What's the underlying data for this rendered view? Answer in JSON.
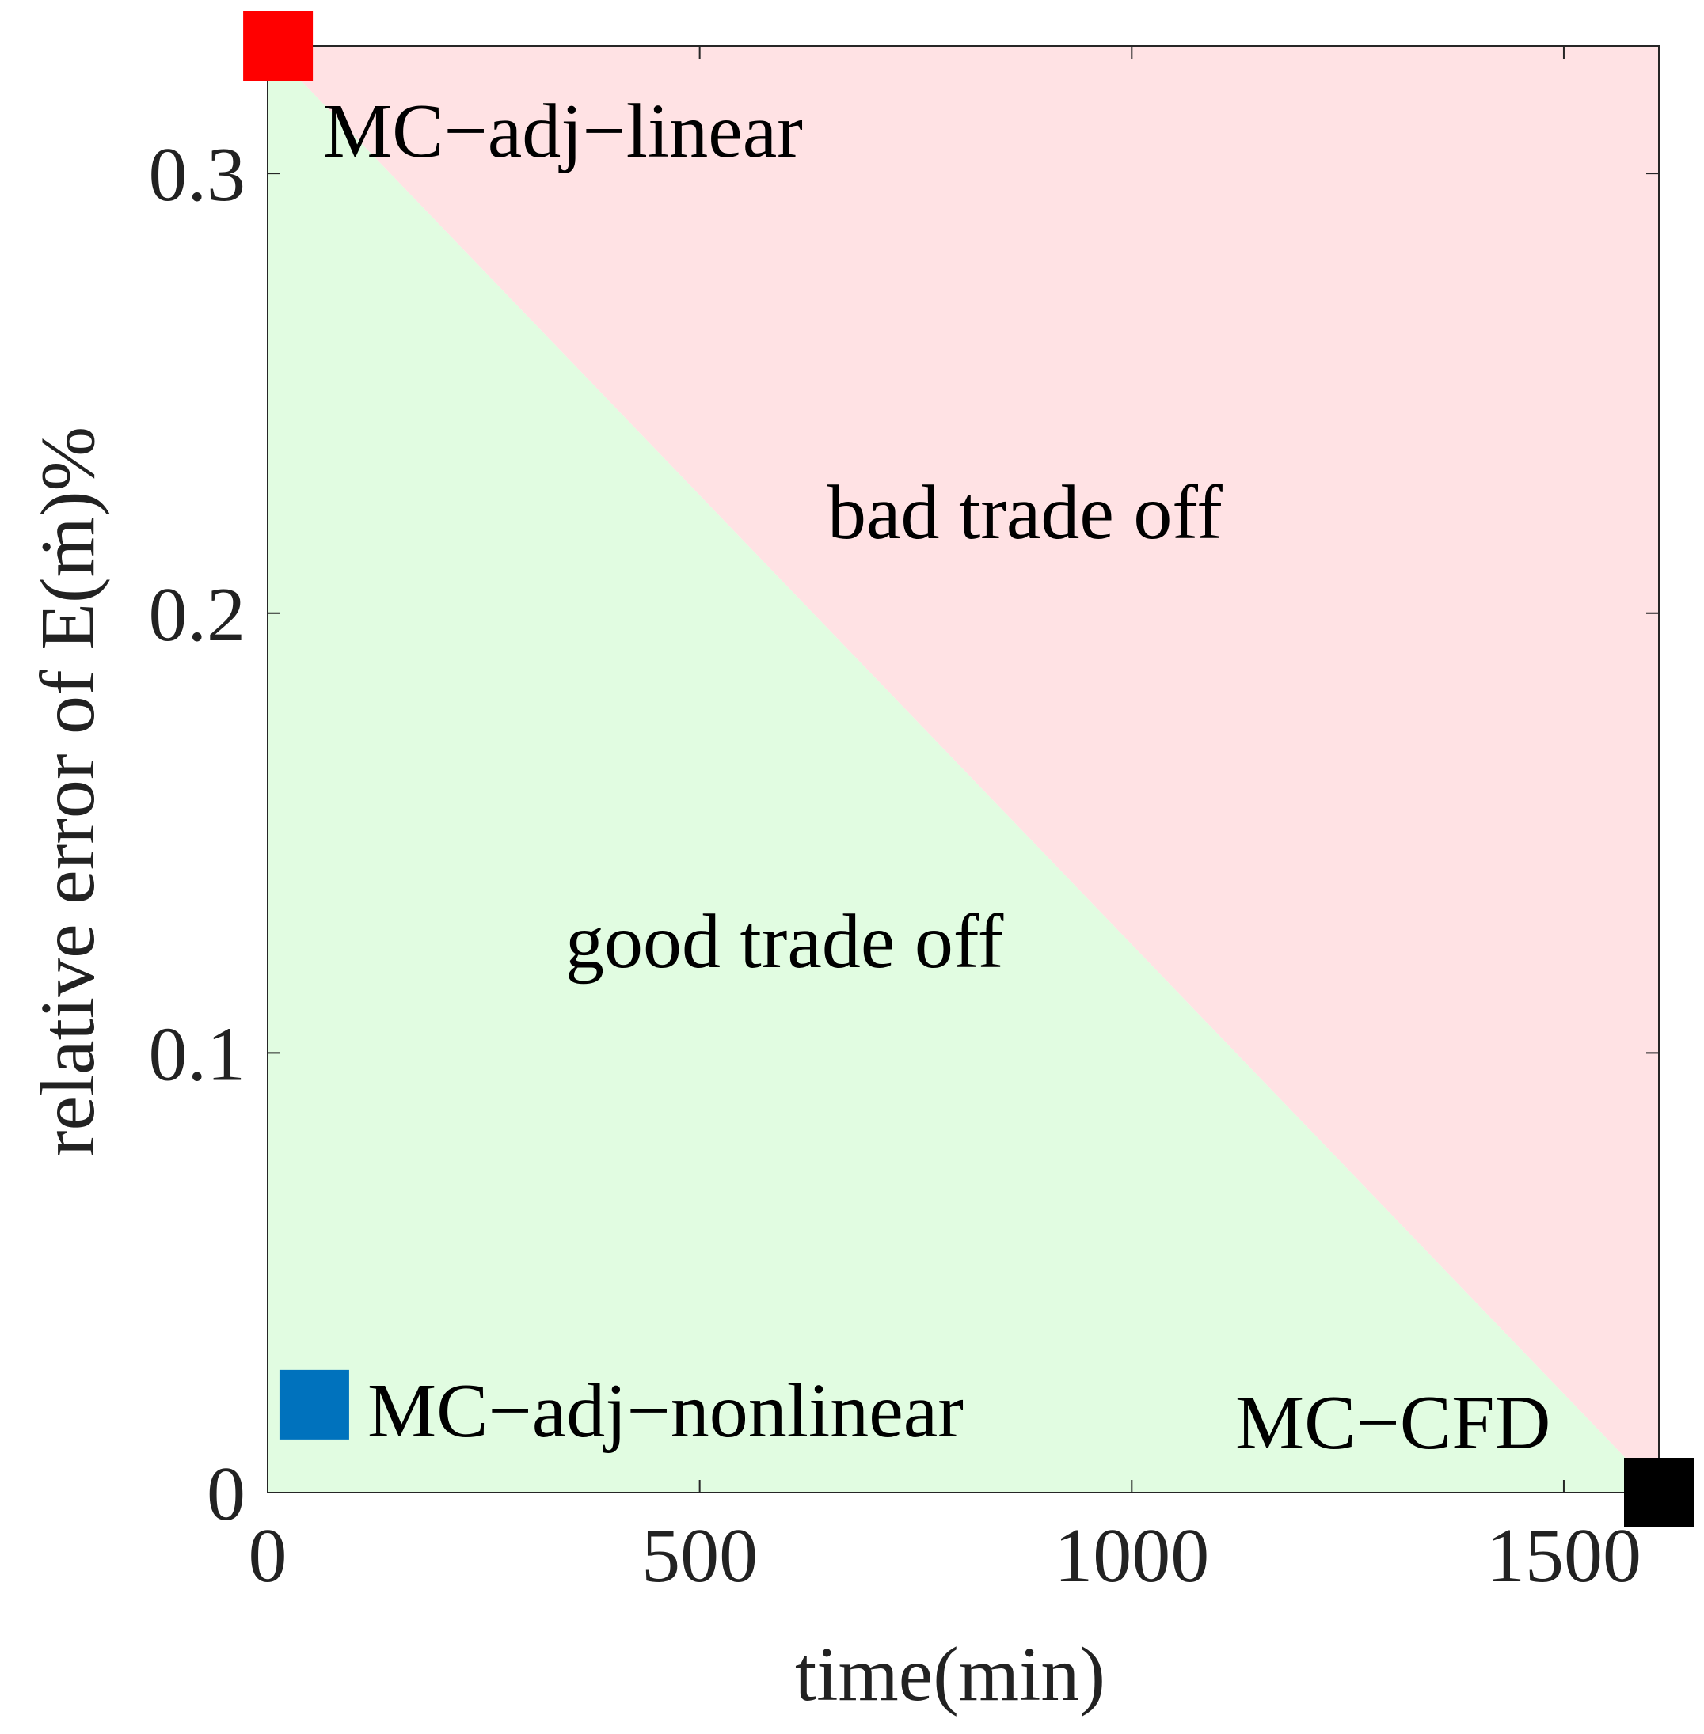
{
  "chart_data": {
    "type": "scatter",
    "title": "",
    "xlabel": "time(min)",
    "ylabel": "relative error of E(ṁ)%",
    "xlim": [
      0,
      1610
    ],
    "ylim": [
      0,
      0.329
    ],
    "x_ticks": [
      0,
      500,
      1000,
      1500
    ],
    "x_tick_labels": [
      "0",
      "500",
      "1000",
      "1500"
    ],
    "y_ticks": [
      0,
      0.1,
      0.2,
      0.3
    ],
    "y_tick_labels": [
      "0",
      "0.1",
      "0.2",
      "0.3"
    ],
    "grid": false,
    "regions": [
      {
        "label": "good trade off",
        "color": "#e1fce1",
        "side": "below-diagonal"
      },
      {
        "label": "bad trade off",
        "color": "#ffe2e4",
        "side": "above-diagonal"
      }
    ],
    "diagonal": {
      "from": [
        0,
        0.329
      ],
      "to": [
        1610,
        0
      ]
    },
    "points": [
      {
        "name": "MC−adj−linear",
        "x": 12,
        "y": 0.329,
        "color": "#ff0000"
      },
      {
        "name": "MC−adj−nonlinear",
        "x": 54,
        "y": 0.02,
        "color": "#0072bd"
      },
      {
        "name": "MC−CFD",
        "x": 1610,
        "y": 0,
        "color": "#000000"
      }
    ]
  }
}
